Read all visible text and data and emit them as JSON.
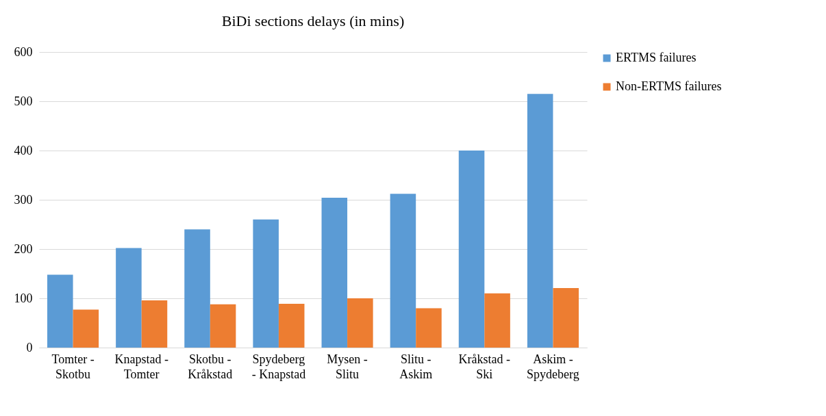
{
  "chart_data": {
    "type": "bar",
    "title": "BiDi sections delays (in mins)",
    "categories": [
      "Tomter - Skotbu",
      "Knapstad - Tomter",
      "Skotbu - Kråkstad",
      "Spydeberg - Knapstad",
      "Mysen - Slitu",
      "Slitu - Askim",
      "Kråkstad - Ski",
      "Askim - Spydeberg"
    ],
    "series": [
      {
        "name": "ERTMS failures",
        "color": "#5b9bd5",
        "values": [
          148,
          202,
          240,
          260,
          304,
          312,
          400,
          515
        ]
      },
      {
        "name": "Non-ERTMS failures",
        "color": "#ed7d31",
        "values": [
          77,
          96,
          88,
          89,
          100,
          80,
          110,
          121
        ]
      }
    ],
    "ylim": [
      0,
      600
    ],
    "yticks": [
      0,
      100,
      200,
      300,
      400,
      500,
      600
    ],
    "grid": "y",
    "legend": "right"
  }
}
